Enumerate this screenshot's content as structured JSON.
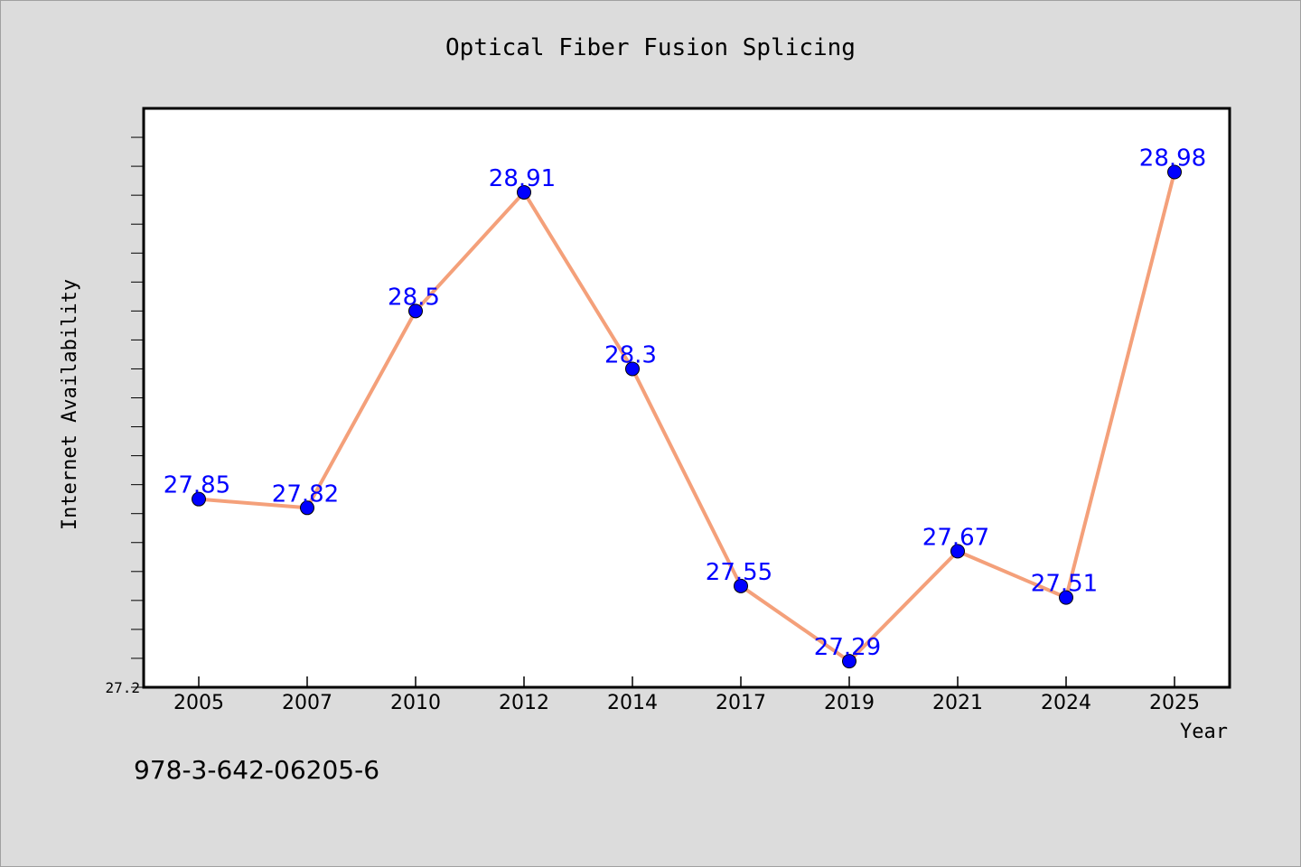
{
  "chart_data": {
    "type": "line",
    "title": "Optical Fiber Fusion Splicing",
    "xlabel": "Year",
    "ylabel": "Internet Availability",
    "categories": [
      "2005",
      "2007",
      "2010",
      "2012",
      "2014",
      "2017",
      "2019",
      "2021",
      "2024",
      "2025"
    ],
    "series": [
      {
        "values": [
          27.85,
          27.82,
          28.5,
          28.91,
          28.3,
          27.55,
          27.29,
          27.67,
          27.51,
          28.98
        ],
        "labels": [
          "27.85",
          "27.82",
          "28.5",
          "28.91",
          "28.3",
          "27.55",
          "27.29",
          "27.67",
          "27.51",
          "28.98"
        ],
        "color": "#f4a07a",
        "marker_color": "#0000ff"
      }
    ],
    "y_tick_labels": [
      "27.2"
    ],
    "ylim": [
      27.2,
      29.2
    ],
    "y_minor_step": 0.1,
    "grid": false,
    "label_color": "#0000ff"
  },
  "footer": {
    "isbn": "978-3-642-06205-6"
  }
}
